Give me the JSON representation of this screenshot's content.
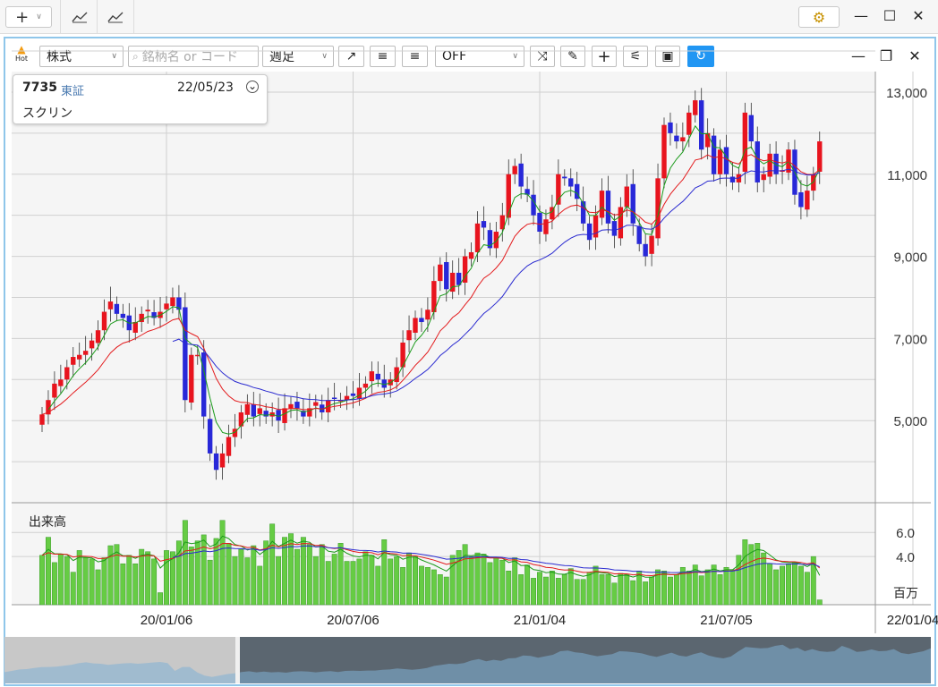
{
  "toolbar_top": {
    "plus": "+"
  },
  "window": {
    "gear": "⚙",
    "minimize": "—",
    "restore": "☐",
    "close": "✕"
  },
  "panel": {
    "hot_label": "Hot",
    "market_select": "株式",
    "search_placeholder": "銘柄名 or コード",
    "period_select": "週足",
    "mode_select": "OFF",
    "minimize": "—",
    "restore": "❐",
    "close": "✕"
  },
  "info": {
    "code": "7735",
    "exchange": "東証",
    "date": "22/05/23",
    "name": "スクリン"
  },
  "colors": {
    "up": "#e8141e",
    "down": "#2828d8",
    "ma_short": "#1a9a1a",
    "ma_mid": "#e31a1c",
    "ma_long": "#2a2ad0",
    "volume": "#66cc44",
    "accent": "#2196f3"
  },
  "chart_data": {
    "type": "candlestick",
    "price_axis": {
      "ticks": [
        5000,
        7000,
        9000,
        11000,
        13000
      ],
      "tick_labels": [
        "5,000",
        "7,000",
        "9,000",
        "11,000",
        "13,000"
      ],
      "range": [
        3000,
        13500
      ]
    },
    "volume_axis": {
      "label": "出来高",
      "ticks": [
        4.0,
        6.0
      ],
      "tick_labels": [
        "4.0",
        "6.0"
      ],
      "unit": "百万",
      "range": [
        0,
        7.5
      ]
    },
    "x_tick_labels": [
      "20/01/06",
      "20/07/06",
      "21/01/04",
      "21/07/05",
      "22/01/04"
    ],
    "x_tick_index": [
      20,
      50,
      80,
      110,
      140
    ],
    "close": [
      5150,
      5500,
      5900,
      6000,
      6300,
      6550,
      6600,
      6700,
      6950,
      7200,
      7650,
      7900,
      7600,
      7500,
      7200,
      7400,
      7600,
      7700,
      7500,
      7650,
      7850,
      8000,
      7700,
      5500,
      6600,
      6600,
      5100,
      4200,
      3800,
      4200,
      4600,
      4800,
      5200,
      5400,
      5100,
      5300,
      5100,
      5200,
      5000,
      5300,
      5400,
      5300,
      5100,
      5300,
      5450,
      5200,
      5500,
      5550,
      5500,
      5600,
      5600,
      5800,
      5900,
      6200,
      6000,
      5800,
      6000,
      6300,
      6900,
      7200,
      7500,
      7400,
      7700,
      8400,
      8800,
      8200,
      8600,
      8300,
      9000,
      9100,
      9800,
      9700,
      9200,
      9600,
      10000,
      11000,
      11200,
      10700,
      10500,
      10000,
      9600,
      9900,
      10200,
      11000,
      10900,
      10700,
      10400,
      9800,
      9400,
      10000,
      10600,
      9800,
      9500,
      10200,
      10700,
      9800,
      9300,
      9000,
      9500,
      10900,
      12200,
      12000,
      11800,
      11900,
      12500,
      12800,
      11600,
      12000,
      11000,
      11600,
      11000,
      10800,
      11000,
      12500,
      11800,
      10800,
      11000,
      11500,
      11000,
      11100,
      11600,
      10500,
      10200,
      10600,
      11000,
      11800
    ],
    "volume": [
      4.1,
      5.6,
      3.5,
      4.2,
      4.0,
      2.7,
      4.5,
      3.9,
      3.8,
      2.9,
      3.9,
      4.9,
      5.0,
      3.4,
      4.1,
      3.4,
      4.6,
      4.4,
      3.8,
      1.0,
      4.5,
      4.4,
      5.3,
      7.0,
      4.8,
      5.3,
      5.8,
      3.7,
      5.5,
      7.0,
      5.1,
      4.0,
      4.6,
      3.9,
      4.9,
      3.2,
      5.3,
      6.7,
      4.0,
      5.6,
      5.9,
      4.6,
      5.6,
      5.0,
      4.0,
      5.0,
      3.6,
      4.2,
      5.1,
      3.6,
      3.6,
      3.8,
      4.4,
      4.1,
      3.2,
      5.4,
      3.8,
      4.0,
      3.1,
      4.3,
      4.0,
      3.2,
      3.1,
      2.9,
      2.5,
      2.3,
      4.1,
      4.5,
      5.0,
      4.0,
      4.3,
      4.2,
      3.5,
      3.9,
      3.7,
      2.8,
      3.9,
      2.5,
      3.3,
      2.2,
      2.7,
      2.3,
      2.8,
      2.2,
      2.5,
      3.0,
      2.1,
      2.1,
      2.7,
      3.2,
      2.5,
      2.5,
      1.8,
      2.6,
      2.5,
      2.0,
      2.8,
      1.9,
      2.3,
      2.9,
      2.8,
      2.3,
      2.5,
      3.1,
      2.8,
      3.3,
      2.4,
      2.9,
      3.3,
      2.5,
      3.1,
      2.9,
      4.1,
      5.4,
      5.0,
      5.1,
      4.3,
      3.4,
      2.9,
      3.2,
      3.4,
      3.5,
      3.2,
      2.7,
      4.0,
      0.4
    ]
  }
}
